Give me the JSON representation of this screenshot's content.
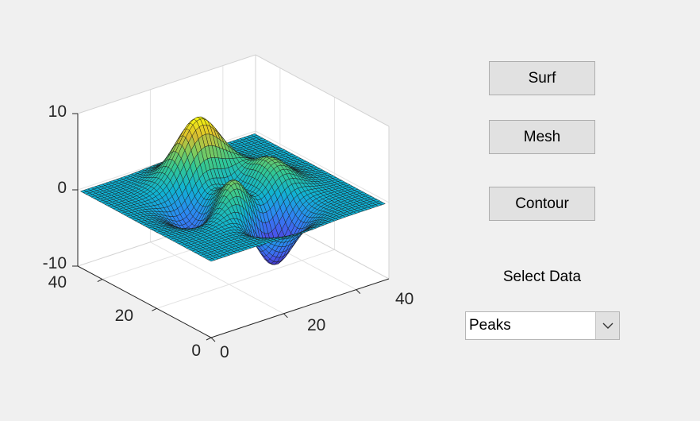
{
  "buttons": {
    "surf": "Surf",
    "mesh": "Mesh",
    "contour": "Contour"
  },
  "select": {
    "label": "Select Data",
    "value": "Peaks"
  },
  "plot": {
    "plot_type": "surf",
    "data": "peaks",
    "colormap": "parula",
    "grid": true,
    "ticks": {
      "x": [
        "0",
        "20",
        "40"
      ],
      "y": [
        "0",
        "20",
        "40"
      ],
      "z": [
        "-10",
        "0",
        "10"
      ]
    }
  },
  "icons": {
    "dropdown": "chevron-down-icon"
  }
}
